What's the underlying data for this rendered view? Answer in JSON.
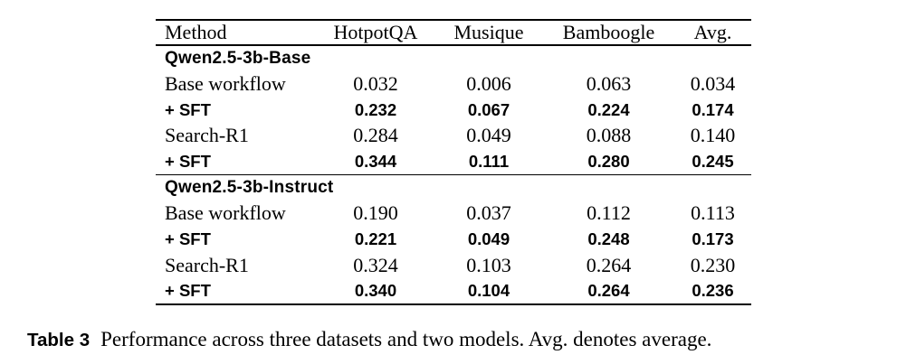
{
  "table": {
    "columns": {
      "method": "Method",
      "hotpotqa": "HotpotQA",
      "musique": "Musique",
      "bamboogle": "Bamboogle",
      "avg": "Avg."
    },
    "sections": [
      {
        "header": "Qwen2.5-3b-Base",
        "rows": [
          {
            "method": "Base workflow",
            "values": [
              "0.032",
              "0.006",
              "0.063",
              "0.034"
            ]
          },
          {
            "method": "+ SFT",
            "values": [
              "0.232",
              "0.067",
              "0.224",
              "0.174"
            ]
          },
          {
            "method": "Search-R1",
            "values": [
              "0.284",
              "0.049",
              "0.088",
              "0.140"
            ]
          },
          {
            "method": "+ SFT",
            "values": [
              "0.344",
              "0.111",
              "0.280",
              "0.245"
            ]
          }
        ]
      },
      {
        "header": "Qwen2.5-3b-Instruct",
        "rows": [
          {
            "method": "Base workflow",
            "values": [
              "0.190",
              "0.037",
              "0.112",
              "0.113"
            ]
          },
          {
            "method": "+ SFT",
            "values": [
              "0.221",
              "0.049",
              "0.248",
              "0.173"
            ]
          },
          {
            "method": "Search-R1",
            "values": [
              "0.324",
              "0.103",
              "0.264",
              "0.230"
            ]
          },
          {
            "method": "+ SFT",
            "values": [
              "0.340",
              "0.104",
              "0.264",
              "0.236"
            ]
          }
        ]
      }
    ]
  },
  "caption": {
    "label": "Table 3",
    "text": "Performance across three datasets and two models. Avg. denotes average."
  },
  "colors": {
    "text": "#000000",
    "background": "#ffffff",
    "rule": "#000000"
  }
}
